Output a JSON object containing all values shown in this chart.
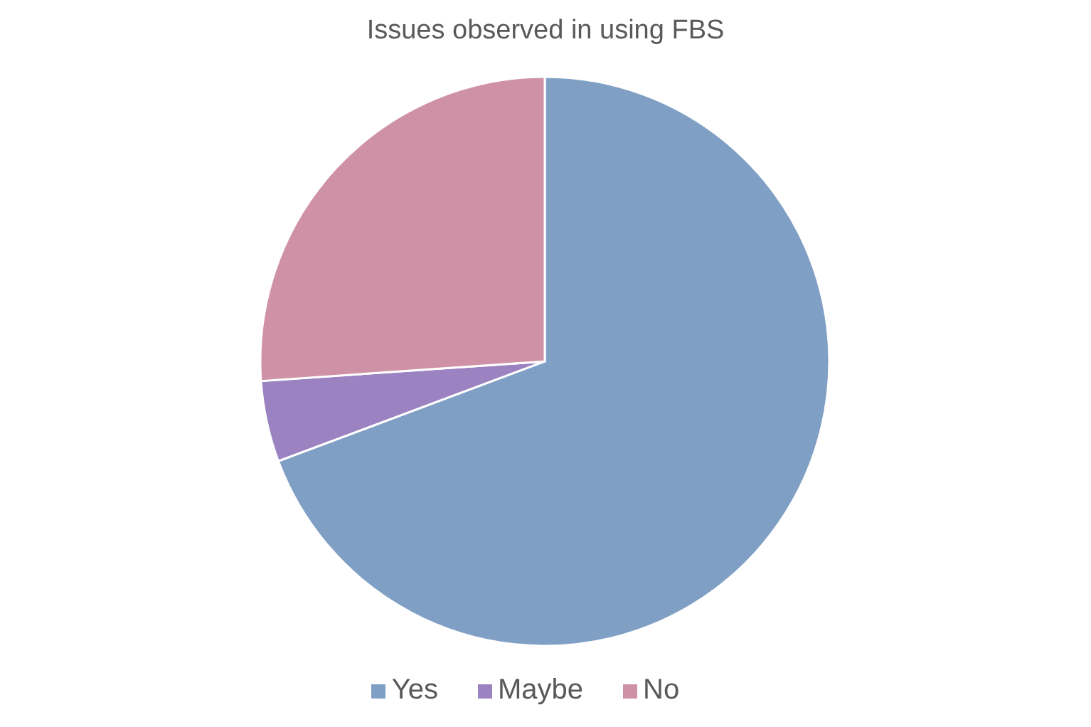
{
  "chart_data": {
    "type": "pie",
    "title": "Issues observed in using FBS",
    "categories": [
      "Yes",
      "Maybe",
      "No"
    ],
    "values": [
      69.3,
      4.6,
      26.1
    ],
    "colors": [
      "#7f9fc4",
      "#9b82c1",
      "#cf91a5"
    ],
    "legend": "bottom"
  }
}
